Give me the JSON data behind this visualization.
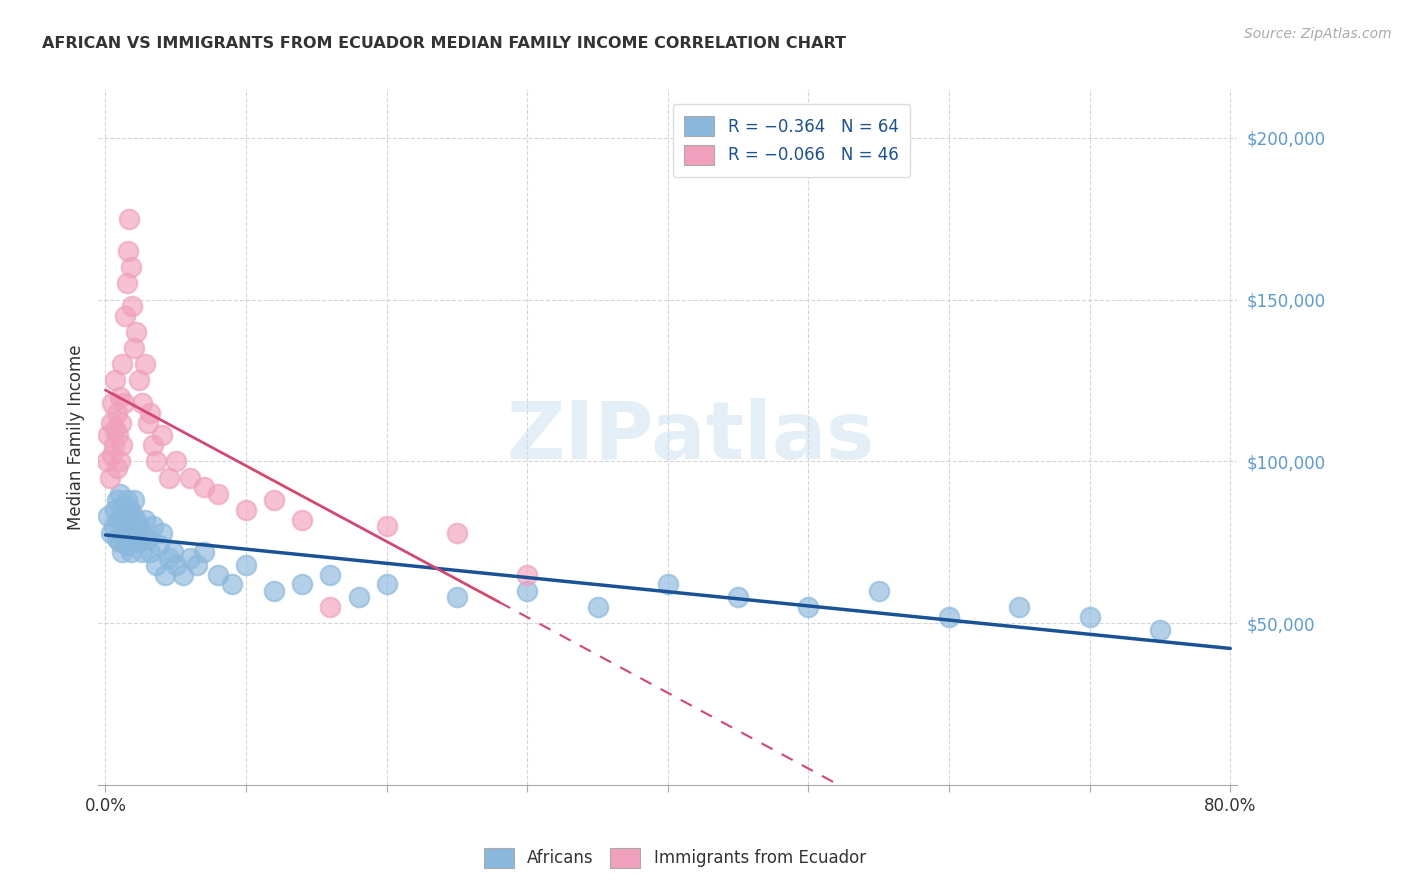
{
  "title": "AFRICAN VS IMMIGRANTS FROM ECUADOR MEDIAN FAMILY INCOME CORRELATION CHART",
  "source": "Source: ZipAtlas.com",
  "ylabel": "Median Family Income",
  "ylim": [
    0,
    215000
  ],
  "xlim": [
    -0.005,
    0.805
  ],
  "legend_entries": [
    {
      "label": "R = −0.364   N = 64",
      "color": "#a8c8e8"
    },
    {
      "label": "R = −0.066   N = 46",
      "color": "#f4b0c8"
    }
  ],
  "legend_bottom": [
    "Africans",
    "Immigrants from Ecuador"
  ],
  "watermark": "ZIPatlas",
  "africans_color": "#8ab8dc",
  "ecuador_color": "#f0a0bc",
  "trend_african_color": "#1a5296",
  "trend_ecuador_color": "#d44870",
  "africans_x": [
    0.002,
    0.004,
    0.006,
    0.007,
    0.008,
    0.008,
    0.009,
    0.01,
    0.01,
    0.012,
    0.012,
    0.013,
    0.013,
    0.014,
    0.015,
    0.015,
    0.016,
    0.017,
    0.017,
    0.018,
    0.018,
    0.019,
    0.02,
    0.02,
    0.021,
    0.022,
    0.023,
    0.024,
    0.025,
    0.026,
    0.028,
    0.03,
    0.032,
    0.034,
    0.036,
    0.038,
    0.04,
    0.042,
    0.045,
    0.048,
    0.05,
    0.055,
    0.06,
    0.065,
    0.07,
    0.08,
    0.09,
    0.1,
    0.12,
    0.14,
    0.16,
    0.18,
    0.2,
    0.25,
    0.3,
    0.35,
    0.4,
    0.45,
    0.5,
    0.55,
    0.6,
    0.65,
    0.7,
    0.75
  ],
  "africans_y": [
    83000,
    78000,
    80000,
    85000,
    88000,
    76000,
    82000,
    90000,
    75000,
    86000,
    72000,
    84000,
    78000,
    80000,
    88000,
    74000,
    82000,
    78000,
    86000,
    80000,
    72000,
    84000,
    76000,
    88000,
    78000,
    82000,
    75000,
    80000,
    78000,
    72000,
    82000,
    76000,
    72000,
    80000,
    68000,
    74000,
    78000,
    65000,
    70000,
    72000,
    68000,
    65000,
    70000,
    68000,
    72000,
    65000,
    62000,
    68000,
    60000,
    62000,
    65000,
    58000,
    62000,
    58000,
    60000,
    55000,
    62000,
    58000,
    55000,
    60000,
    52000,
    55000,
    52000,
    48000
  ],
  "ecuador_x": [
    0.001,
    0.002,
    0.003,
    0.004,
    0.005,
    0.005,
    0.006,
    0.007,
    0.007,
    0.008,
    0.008,
    0.009,
    0.01,
    0.01,
    0.011,
    0.012,
    0.012,
    0.013,
    0.014,
    0.015,
    0.016,
    0.017,
    0.018,
    0.019,
    0.02,
    0.022,
    0.024,
    0.026,
    0.028,
    0.03,
    0.032,
    0.034,
    0.036,
    0.04,
    0.045,
    0.05,
    0.06,
    0.07,
    0.08,
    0.1,
    0.12,
    0.14,
    0.16,
    0.2,
    0.25,
    0.3
  ],
  "ecuador_y": [
    100000,
    108000,
    95000,
    112000,
    102000,
    118000,
    105000,
    110000,
    125000,
    98000,
    115000,
    108000,
    100000,
    120000,
    112000,
    105000,
    130000,
    118000,
    145000,
    155000,
    165000,
    175000,
    160000,
    148000,
    135000,
    140000,
    125000,
    118000,
    130000,
    112000,
    115000,
    105000,
    100000,
    108000,
    95000,
    100000,
    95000,
    92000,
    90000,
    85000,
    88000,
    82000,
    55000,
    80000,
    78000,
    65000
  ]
}
